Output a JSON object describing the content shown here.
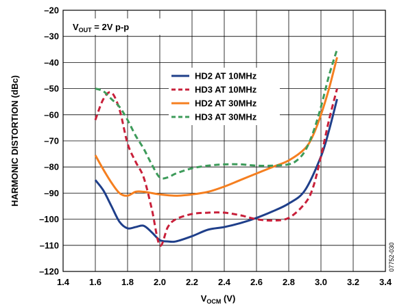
{
  "chart_data": {
    "type": "line",
    "annotation": {
      "main": "V",
      "sub": "OUT",
      "rest": " = 2V p-p"
    },
    "xlabel": {
      "main": "V",
      "sub": "OCM",
      "rest": " (V)"
    },
    "ylabel": "HARMONIC DISTORTION (dBc)",
    "xlim": [
      1.4,
      3.4
    ],
    "ylim": [
      -120,
      -20
    ],
    "xticks": [
      1.4,
      1.6,
      1.8,
      2.0,
      2.2,
      2.4,
      2.6,
      2.8,
      3.0,
      3.2,
      3.4
    ],
    "xtick_labels": [
      "1.4",
      "1.6",
      "1.8",
      "2.0",
      "2.2",
      "2.4",
      "2.6",
      "2.8",
      "3.0",
      "3.2",
      "3.4"
    ],
    "yticks": [
      -20,
      -30,
      -40,
      -50,
      -60,
      -70,
      -80,
      -90,
      -100,
      -110,
      -120
    ],
    "ytick_labels": [
      "–20",
      "–30",
      "–40",
      "–50",
      "–60",
      "–70",
      "–80",
      "–90",
      "–100",
      "–110",
      "–120"
    ],
    "grid": true,
    "legend_position": "center-right",
    "figure_id": "07752-030",
    "series": [
      {
        "name": "HD2 AT 10MHz",
        "color": "#1f3f8a",
        "dash": "solid",
        "points": [
          [
            1.6,
            -85
          ],
          [
            1.65,
            -89
          ],
          [
            1.7,
            -95
          ],
          [
            1.75,
            -101
          ],
          [
            1.8,
            -103.5
          ],
          [
            1.85,
            -103
          ],
          [
            1.9,
            -102.5
          ],
          [
            1.95,
            -105
          ],
          [
            2.0,
            -108
          ],
          [
            2.05,
            -108.5
          ],
          [
            2.1,
            -108.5
          ],
          [
            2.2,
            -106.5
          ],
          [
            2.3,
            -104
          ],
          [
            2.4,
            -103
          ],
          [
            2.5,
            -101.5
          ],
          [
            2.6,
            -99.5
          ],
          [
            2.7,
            -97
          ],
          [
            2.8,
            -94
          ],
          [
            2.9,
            -89
          ],
          [
            3.0,
            -76
          ],
          [
            3.05,
            -66
          ],
          [
            3.1,
            -54
          ]
        ]
      },
      {
        "name": "HD3 AT 10MHz",
        "color": "#c8203a",
        "dash": "dashed",
        "points": [
          [
            1.6,
            -62
          ],
          [
            1.65,
            -54
          ],
          [
            1.7,
            -51.5
          ],
          [
            1.75,
            -58
          ],
          [
            1.8,
            -71
          ],
          [
            1.85,
            -78
          ],
          [
            1.9,
            -84
          ],
          [
            1.95,
            -96
          ],
          [
            2.0,
            -110
          ],
          [
            2.05,
            -103
          ],
          [
            2.1,
            -100
          ],
          [
            2.2,
            -98
          ],
          [
            2.3,
            -97.5
          ],
          [
            2.4,
            -97.5
          ],
          [
            2.5,
            -98.5
          ],
          [
            2.6,
            -100
          ],
          [
            2.7,
            -100.5
          ],
          [
            2.8,
            -99.5
          ],
          [
            2.9,
            -94
          ],
          [
            2.95,
            -88
          ],
          [
            3.0,
            -76
          ],
          [
            3.05,
            -62
          ],
          [
            3.1,
            -50
          ]
        ]
      },
      {
        "name": "HD2 AT 30MHz",
        "color": "#f57f20",
        "dash": "solid",
        "points": [
          [
            1.6,
            -75.5
          ],
          [
            1.65,
            -81
          ],
          [
            1.7,
            -86
          ],
          [
            1.75,
            -90
          ],
          [
            1.8,
            -91
          ],
          [
            1.85,
            -89.5
          ],
          [
            1.9,
            -89.5
          ],
          [
            1.95,
            -90
          ],
          [
            2.0,
            -90.5
          ],
          [
            2.1,
            -91
          ],
          [
            2.2,
            -90.5
          ],
          [
            2.3,
            -89.5
          ],
          [
            2.4,
            -87.5
          ],
          [
            2.5,
            -85
          ],
          [
            2.6,
            -82.5
          ],
          [
            2.7,
            -80
          ],
          [
            2.8,
            -77.5
          ],
          [
            2.9,
            -73
          ],
          [
            2.95,
            -68
          ],
          [
            3.0,
            -60
          ],
          [
            3.05,
            -50
          ],
          [
            3.1,
            -38
          ]
        ]
      },
      {
        "name": "HD3 AT 30MHz",
        "color": "#3d9b5a",
        "dash": "dashed",
        "points": [
          [
            1.6,
            -50
          ],
          [
            1.65,
            -51
          ],
          [
            1.7,
            -54
          ],
          [
            1.75,
            -57
          ],
          [
            1.8,
            -62
          ],
          [
            1.85,
            -68
          ],
          [
            1.9,
            -73
          ],
          [
            1.95,
            -79
          ],
          [
            2.0,
            -84
          ],
          [
            2.05,
            -84
          ],
          [
            2.1,
            -82.5
          ],
          [
            2.2,
            -80.5
          ],
          [
            2.3,
            -79.5
          ],
          [
            2.4,
            -79
          ],
          [
            2.5,
            -79
          ],
          [
            2.6,
            -79.5
          ],
          [
            2.7,
            -79.5
          ],
          [
            2.8,
            -79
          ],
          [
            2.85,
            -77.5
          ],
          [
            2.9,
            -74
          ],
          [
            2.95,
            -67
          ],
          [
            3.0,
            -57
          ],
          [
            3.05,
            -45
          ],
          [
            3.1,
            -35
          ]
        ]
      }
    ]
  }
}
